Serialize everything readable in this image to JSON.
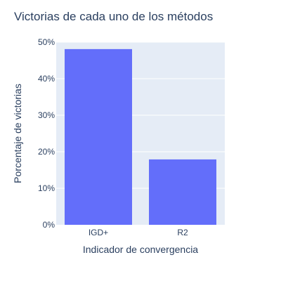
{
  "chart_data": {
    "type": "bar",
    "title": "Victorias de cada uno de los métodos",
    "xlabel": "Indicador de convergencia",
    "ylabel": "Porcentaje de victorias",
    "categories": [
      "IGD+",
      "R2"
    ],
    "values": [
      48.1,
      17.9
    ],
    "ylim": [
      0,
      50
    ],
    "yticks": [
      0,
      10,
      20,
      30,
      40,
      50
    ],
    "ytick_labels": [
      "0%",
      "10%",
      "20%",
      "30%",
      "40%",
      "50%"
    ],
    "grid": true,
    "legend": "none",
    "colors": {
      "bar": "#636efa",
      "plot_background": "#e5ecf6",
      "grid": "#ffffff",
      "text": "#2a3f5f"
    }
  }
}
